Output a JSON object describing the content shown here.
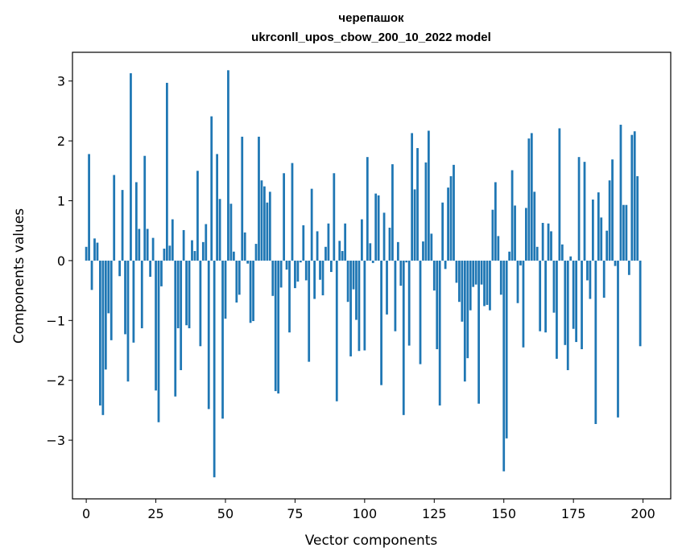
{
  "chart_data": {
    "type": "bar",
    "title_line1": "черепашок",
    "title_line2": "ukrconll_upos_cbow_200_10_2022 model",
    "xlabel": "Vector components",
    "ylabel": "Components values",
    "xlim": [
      -4.95,
      209.95
    ],
    "ylim": [
      -3.98,
      3.48
    ],
    "xticks": [
      0,
      25,
      50,
      75,
      100,
      125,
      150,
      175,
      200
    ],
    "xtick_labels": [
      "0",
      "25",
      "50",
      "75",
      "100",
      "125",
      "150",
      "175",
      "200"
    ],
    "yticks": [
      -3,
      -2,
      -1,
      0,
      1,
      2,
      3
    ],
    "ytick_labels": [
      "−3",
      "−2",
      "−1",
      "0",
      "1",
      "2",
      "3"
    ],
    "bar_color": "#1f77b4",
    "values": [
      0.23,
      1.78,
      -0.49,
      0.37,
      0.3,
      -2.42,
      -2.58,
      -1.82,
      -0.88,
      -1.33,
      1.43,
      0.0,
      -0.26,
      1.18,
      -1.23,
      -2.02,
      3.13,
      -1.37,
      1.31,
      0.53,
      -1.13,
      1.75,
      0.53,
      -0.27,
      0.38,
      -2.17,
      -2.7,
      -0.43,
      0.2,
      2.97,
      0.25,
      0.69,
      -2.27,
      -1.13,
      -1.83,
      0.51,
      -1.08,
      -1.13,
      0.34,
      0.16,
      1.5,
      -1.43,
      0.31,
      0.61,
      -2.48,
      2.41,
      -3.62,
      1.78,
      1.03,
      -2.64,
      -0.97,
      3.18,
      0.95,
      0.15,
      -0.7,
      -0.57,
      2.07,
      0.47,
      -0.05,
      -1.04,
      -1.01,
      0.28,
      2.07,
      1.34,
      1.24,
      0.97,
      1.15,
      -0.59,
      -2.18,
      -2.22,
      -0.45,
      1.46,
      -0.15,
      -1.2,
      1.63,
      -0.46,
      -0.35,
      -0.03,
      0.59,
      -0.33,
      -1.69,
      1.2,
      -0.64,
      0.49,
      -0.32,
      -0.58,
      0.23,
      0.62,
      -0.19,
      1.46,
      -2.35,
      0.33,
      0.16,
      0.62,
      -0.69,
      -1.6,
      -0.48,
      -0.99,
      -1.51,
      0.69,
      -1.5,
      1.73,
      0.29,
      -0.04,
      1.12,
      1.09,
      -2.08,
      0.8,
      -0.9,
      0.55,
      1.61,
      -1.18,
      0.31,
      -0.42,
      -2.58,
      -0.03,
      -1.42,
      2.13,
      1.19,
      1.88,
      -1.73,
      0.32,
      1.64,
      2.17,
      0.45,
      -0.5,
      -1.48,
      -2.42,
      0.97,
      -0.14,
      1.22,
      1.41,
      1.6,
      -0.37,
      -0.69,
      -1.02,
      -2.02,
      -1.63,
      -0.83,
      -0.44,
      -0.4,
      -2.39,
      -0.4,
      -0.76,
      -0.74,
      -0.83,
      0.85,
      1.31,
      0.41,
      -0.57,
      -3.52,
      -2.97,
      0.15,
      1.51,
      0.92,
      -0.71,
      -0.08,
      -1.45,
      0.88,
      2.04,
      2.13,
      1.15,
      0.23,
      -1.18,
      0.63,
      -1.2,
      0.62,
      0.49,
      -0.87,
      -1.64,
      2.21,
      0.27,
      -1.41,
      -1.83,
      0.07,
      -1.14,
      -1.36,
      1.73,
      -1.48,
      1.65,
      -0.33,
      -0.64,
      1.02,
      -2.73,
      1.14,
      0.72,
      -0.62,
      0.5,
      1.34,
      1.69,
      -0.09,
      -2.62,
      2.27,
      0.93,
      0.93,
      -0.24,
      2.1,
      2.16,
      1.41,
      -1.43
    ]
  }
}
